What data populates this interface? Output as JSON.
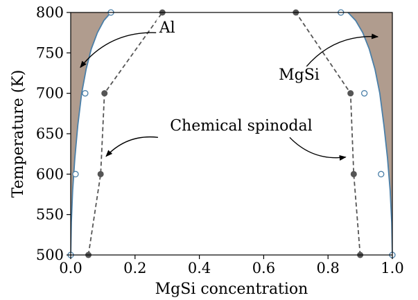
{
  "chart_data": {
    "type": "line",
    "xlabel": "MgSi concentration",
    "ylabel": "Temperature (K)",
    "xlim": [
      0.0,
      1.0
    ],
    "ylim": [
      500,
      800
    ],
    "xticks": [
      "0.0",
      "0.2",
      "0.4",
      "0.6",
      "0.8",
      "1.0"
    ],
    "yticks": [
      "500",
      "550",
      "600",
      "650",
      "700",
      "750",
      "800"
    ],
    "grid": false,
    "colors": {
      "region_fill": "#b09c8e",
      "binodal_line": "#4a7fa8",
      "spinodal_line": "#555555",
      "spinodal_marker": "#555555"
    },
    "binodal_curves": [
      {
        "x": [
          0.0,
          0.002,
          0.006,
          0.013,
          0.022,
          0.034,
          0.048,
          0.064,
          0.083,
          0.103,
          0.125,
          0.135
        ],
        "y": [
          500,
          540,
          580,
          620,
          660,
          700,
          730,
          755,
          775,
          790,
          800,
          805
        ]
      },
      {
        "x": [
          1.0,
          0.998,
          0.993,
          0.985,
          0.974,
          0.961,
          0.946,
          0.928,
          0.908,
          0.886,
          0.862,
          0.852
        ],
        "y": [
          500,
          540,
          580,
          620,
          660,
          700,
          730,
          755,
          775,
          790,
          800,
          805
        ]
      }
    ],
    "binodal_points": [
      {
        "x": 0.0,
        "y": 500
      },
      {
        "x": 0.015,
        "y": 600
      },
      {
        "x": 0.045,
        "y": 700
      },
      {
        "x": 0.125,
        "y": 800
      },
      {
        "x": 1.0,
        "y": 500
      },
      {
        "x": 0.965,
        "y": 600
      },
      {
        "x": 0.913,
        "y": 700
      },
      {
        "x": 0.84,
        "y": 800
      }
    ],
    "spinodal_series": [
      {
        "x": [
          0.055,
          0.093,
          0.105,
          0.285
        ],
        "y": [
          500,
          600,
          700,
          800
        ]
      },
      {
        "x": [
          0.9,
          0.88,
          0.87,
          0.7
        ],
        "y": [
          500,
          600,
          700,
          800
        ]
      }
    ],
    "annotations": [
      {
        "text": "Al",
        "text_x": 0.3,
        "text_y": 775,
        "arrow_to_x": 0.03,
        "arrow_to_y": 732
      },
      {
        "text": "MgSi",
        "text_x": 0.71,
        "text_y": 717,
        "arrow_to_x": 0.955,
        "arrow_to_y": 770
      },
      {
        "text": "Chemical spinodal",
        "text_x": 0.53,
        "text_y": 654,
        "arrow_to_x": 0.11,
        "arrow_to_y": 622
      },
      {
        "text": "Chemical spinodal",
        "text_x": 0.53,
        "text_y": 654,
        "arrow_to_x": 0.855,
        "arrow_to_y": 621
      }
    ]
  }
}
